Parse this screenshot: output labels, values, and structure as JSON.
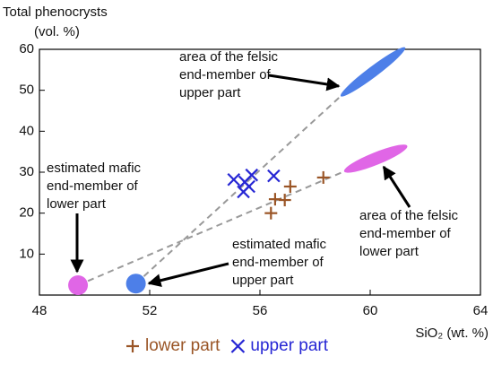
{
  "chart_data": {
    "type": "scatter",
    "y_label": [
      "Total phenocrysts",
      "(vol. %)"
    ],
    "x_label": "SiO₂ (wt. %)",
    "xlim": [
      48,
      64
    ],
    "xticks": [
      48,
      52,
      56,
      60,
      64
    ],
    "ylim": [
      0,
      60
    ],
    "yticks": [
      10,
      20,
      30,
      40,
      50,
      60
    ],
    "series": [
      {
        "name": "lower part",
        "color": "#9a5526",
        "marker": "plus",
        "x": [
          56.4,
          56.55,
          56.9,
          57.1,
          58.3
        ],
        "values": [
          20,
          23.4,
          23.2,
          26.5,
          28.7
        ]
      },
      {
        "name": "upper part",
        "color": "#2626d4",
        "marker": "cross",
        "x": [
          55.05,
          55.45,
          55.7,
          56.5,
          55.4,
          55.6
        ],
        "values": [
          28.2,
          27.6,
          29.3,
          29.1,
          25.2,
          26.5
        ]
      }
    ],
    "end_members": [
      {
        "x": 49.4,
        "y": 2.4,
        "color": "#e066e6",
        "area_x": 60.2,
        "area_y": 33.3
      },
      {
        "x": 51.5,
        "y": 2.8,
        "color": "#4d7fe8",
        "area_x": 60.1,
        "area_y": 54.5
      }
    ],
    "annotations": [
      [
        "area of the felsic",
        "end-member of",
        "upper part"
      ],
      [
        "estimated mafic",
        "end-member of",
        "lower part"
      ],
      [
        "estimated mafic",
        "end-member of",
        "upper part"
      ],
      [
        "area of the felsic",
        "end-member of",
        "lower part"
      ]
    ]
  }
}
